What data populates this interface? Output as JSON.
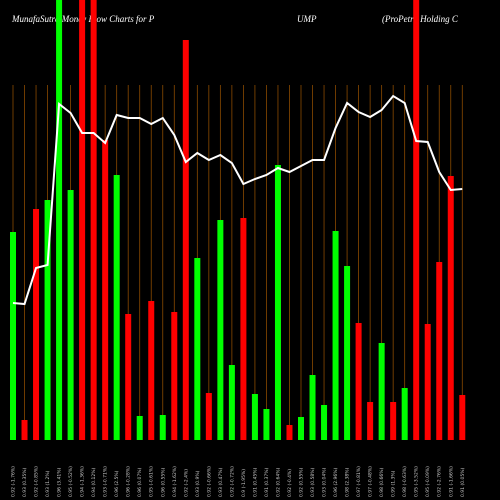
{
  "chart_data": {
    "type": "bar",
    "title": "MunafaSutra  Money Flow  Charts for P",
    "title_mid": "UMP",
    "subtitle": "(ProPetro Holding C",
    "categories": [
      "0.92 (-1.76%)",
      "0.93 (0.35%)",
      "0.92 (-0.85%)",
      "0.93 (1.2%)",
      "0.96 (3.41%)",
      "0.95 (-0.52%)",
      "0.94 (-1.36%)",
      "0.94 (0.12%)",
      "0.93 (-0.71%)",
      "0.96 (2.5%)",
      "0.96 (-0.28%)",
      "0.96 (0.07%)",
      "0.95 (-0.61%)",
      "0.96 (0.55%)",
      "0.94 (-1.62%)",
      "0.92 (-2.4%)",
      "0.93 (0.9%)",
      "0.92 (-0.66%)",
      "0.93 (0.47%)",
      "0.92 (-0.72%)",
      "0.9 (-1.95%)",
      "0.91 (0.45%)",
      "0.91 (0.37%)",
      "0.92 (0.64%)",
      "0.92 (-0.4%)",
      "0.92 (0.55%)",
      "0.93 (0.58%)",
      "0.93 (0.04%)",
      "0.96 (2.96%)",
      "0.98 (2.38%)",
      "0.97 (-0.81%)",
      "0.97 (-0.48%)",
      "0.98 (0.66%)",
      "0.99 (1.3%)",
      "0.98 (-0.63%)",
      "0.95 (-3.52%)",
      "0.95 (-0.09%)",
      "0.92 (-2.76%)",
      "0.91 (-1.66%)",
      "0.91 (0.05%)"
    ],
    "values": [
      208,
      20,
      231,
      240,
      440,
      250,
      440,
      440,
      300,
      265,
      126,
      24,
      139,
      25,
      128,
      400,
      182,
      47,
      220,
      75,
      222,
      46,
      31,
      275,
      15,
      23,
      65,
      35,
      209,
      174,
      117,
      38,
      97,
      38,
      52,
      440,
      116,
      178,
      264,
      45
    ],
    "colors": [
      "#00ff00",
      "#ff0000",
      "#ff0000",
      "#00ff00",
      "#00ff00",
      "#00ff00",
      "#ff0000",
      "#ff0000",
      "#ff0000",
      "#00ff00",
      "#ff0000",
      "#00ff00",
      "#ff0000",
      "#00ff00",
      "#ff0000",
      "#ff0000",
      "#00ff00",
      "#ff0000",
      "#00ff00",
      "#00ff00",
      "#ff0000",
      "#00ff00",
      "#00ff00",
      "#00ff00",
      "#ff0000",
      "#00ff00",
      "#00ff00",
      "#00ff00",
      "#00ff00",
      "#00ff00",
      "#ff0000",
      "#ff0000",
      "#00ff00",
      "#ff0000",
      "#00ff00",
      "#ff0000",
      "#ff0000",
      "#ff0000",
      "#ff0000",
      "#ff0000"
    ],
    "line": {
      "color": "#ffffff",
      "values": [
        137,
        136,
        172,
        175,
        336,
        327,
        307,
        307,
        297,
        325,
        322,
        322,
        316,
        322,
        305,
        278,
        287,
        280,
        285,
        277,
        256,
        261,
        265,
        272,
        268,
        274,
        280,
        280,
        312,
        337,
        328,
        323,
        330,
        344,
        337,
        299,
        298,
        268,
        250,
        251
      ]
    },
    "ylim": [
      0,
      440
    ],
    "grid": true,
    "grid_color": "#8a4a00"
  }
}
